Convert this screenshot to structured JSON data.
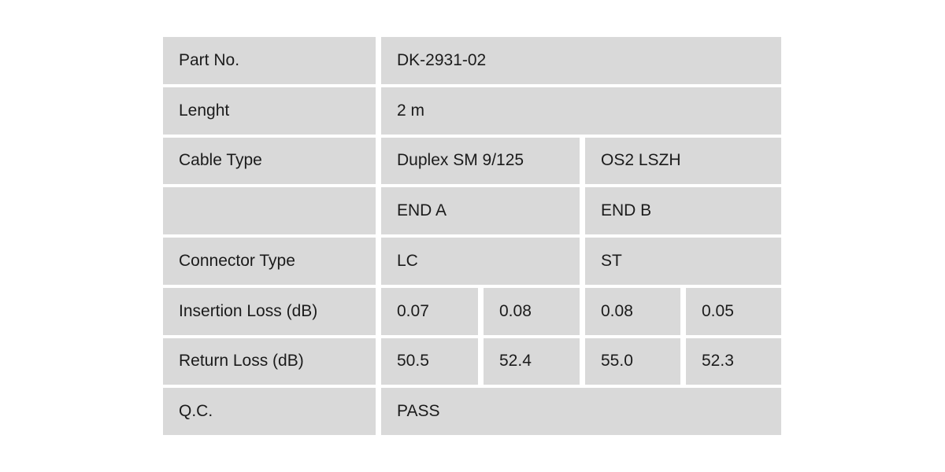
{
  "colors": {
    "cell_background": "#d9d9d9",
    "gap_background": "#ffffff",
    "text": "#1b1b1b"
  },
  "table": {
    "rows": [
      {
        "label": "Part No.",
        "values": [
          {
            "text": "DK-2931-02",
            "span": 4
          }
        ]
      },
      {
        "label": "Lenght",
        "values": [
          {
            "text": "2 m",
            "span": 4
          }
        ]
      },
      {
        "label": "Cable Type",
        "values": [
          {
            "text": "Duplex SM 9/125",
            "span": 2
          },
          {
            "text": "OS2 LSZH",
            "span": 2
          }
        ]
      },
      {
        "label": "",
        "values": [
          {
            "text": "END A",
            "span": 2
          },
          {
            "text": "END B",
            "span": 2
          }
        ]
      },
      {
        "label": "Connector Type",
        "values": [
          {
            "text": "LC",
            "span": 2
          },
          {
            "text": "ST",
            "span": 2
          }
        ]
      },
      {
        "label": "Insertion Loss (dB)",
        "values": [
          {
            "text": "0.07",
            "span": 1
          },
          {
            "text": "0.08",
            "span": 1
          },
          {
            "text": "0.08",
            "span": 1
          },
          {
            "text": "0.05",
            "span": 1
          }
        ]
      },
      {
        "label": "Return Loss (dB)",
        "values": [
          {
            "text": "50.5",
            "span": 1
          },
          {
            "text": "52.4",
            "span": 1
          },
          {
            "text": "55.0",
            "span": 1
          },
          {
            "text": "52.3",
            "span": 1
          }
        ]
      },
      {
        "label": "Q.C.",
        "values": [
          {
            "text": "PASS",
            "span": 4
          }
        ]
      }
    ]
  }
}
